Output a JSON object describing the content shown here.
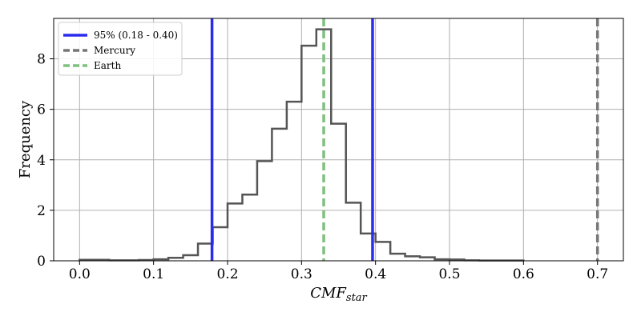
{
  "chart_data": {
    "type": "histogram",
    "title": "",
    "xlabel_base": "CMF",
    "xlabel_sub": "star",
    "ylabel": "Frequency",
    "xlim": [
      -0.035,
      0.735
    ],
    "ylim": [
      0,
      9.6
    ],
    "x_ticks": [
      0.0,
      0.1,
      0.2,
      0.3,
      0.4,
      0.5,
      0.6,
      0.7
    ],
    "x_tick_labels": [
      "0.0",
      "0.1",
      "0.2",
      "0.3",
      "0.4",
      "0.5",
      "0.6",
      "0.7"
    ],
    "y_ticks": [
      0,
      2,
      4,
      6,
      8
    ],
    "y_tick_labels": [
      "0",
      "2",
      "4",
      "6",
      "8"
    ],
    "grid": true,
    "histogram": {
      "bin_edges": [
        0.0,
        0.02,
        0.04,
        0.06,
        0.08,
        0.1,
        0.12,
        0.14,
        0.16,
        0.18,
        0.2,
        0.22,
        0.24,
        0.26,
        0.28,
        0.3,
        0.32,
        0.34,
        0.36,
        0.38,
        0.4,
        0.42,
        0.44,
        0.46,
        0.48,
        0.5,
        0.52,
        0.54,
        0.56,
        0.58,
        0.6
      ],
      "counts": [
        0.04,
        0.04,
        0.02,
        0.02,
        0.03,
        0.06,
        0.12,
        0.22,
        0.68,
        1.33,
        2.27,
        2.62,
        3.95,
        5.23,
        6.3,
        8.52,
        9.17,
        5.43,
        2.3,
        1.08,
        0.75,
        0.28,
        0.18,
        0.14,
        0.06,
        0.05,
        0.02,
        0.01,
        0.01,
        0.01
      ],
      "color": "#555555"
    },
    "vlines": [
      {
        "x": 0.179,
        "color": "#2b2bee",
        "style": "solid"
      },
      {
        "x": 0.396,
        "color": "#2b2bee",
        "style": "solid"
      },
      {
        "x": 0.7,
        "color": "#777777",
        "style": "dashed"
      },
      {
        "x": 0.33,
        "color": "#7fbf7f",
        "style": "dashed"
      }
    ],
    "legend": {
      "position": "top-left",
      "entries": [
        {
          "label": "95% (0.18 - 0.40)",
          "color": "#2b2bee",
          "style": "solid"
        },
        {
          "label": "Mercury",
          "color": "#777777",
          "style": "dashed"
        },
        {
          "label": "Earth",
          "color": "#7fbf7f",
          "style": "dashed"
        }
      ]
    }
  }
}
